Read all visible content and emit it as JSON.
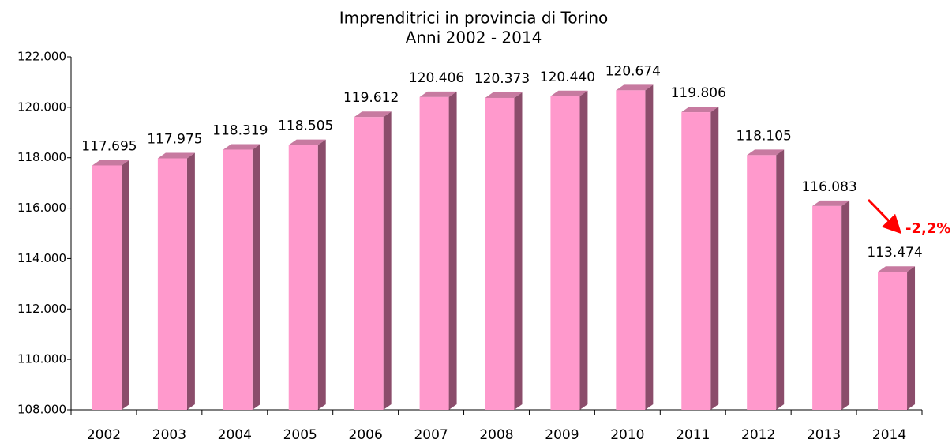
{
  "chart_data": {
    "type": "bar",
    "title": "Imprenditrici in provincia di Torino",
    "subtitle": "Anni 2002 - 2014",
    "categories": [
      "2002",
      "2003",
      "2004",
      "2005",
      "2006",
      "2007",
      "2008",
      "2009",
      "2010",
      "2011",
      "2012",
      "2013",
      "2014"
    ],
    "values": [
      117695,
      117975,
      118319,
      118505,
      119612,
      120406,
      120373,
      120440,
      120674,
      119806,
      118105,
      116083,
      113474
    ],
    "value_labels": [
      "117.695",
      "117.975",
      "118.319",
      "118.505",
      "119.612",
      "120.406",
      "120.373",
      "120.440",
      "120.674",
      "119.806",
      "118.105",
      "116.083",
      "113.474"
    ],
    "color": "#ff99cc",
    "ylim": [
      108000,
      122000
    ],
    "yticks": [
      {
        "value": 108000,
        "label": "108.000"
      },
      {
        "value": 110000,
        "label": "110.000"
      },
      {
        "value": 112000,
        "label": "112.000"
      },
      {
        "value": 114000,
        "label": "114.000"
      },
      {
        "value": 116000,
        "label": "116.000"
      },
      {
        "value": 118000,
        "label": "118.000"
      },
      {
        "value": 120000,
        "label": "120.000"
      },
      {
        "value": 122000,
        "label": "122.000"
      }
    ],
    "grid": false,
    "annotations": [
      "-2,2%"
    ]
  }
}
